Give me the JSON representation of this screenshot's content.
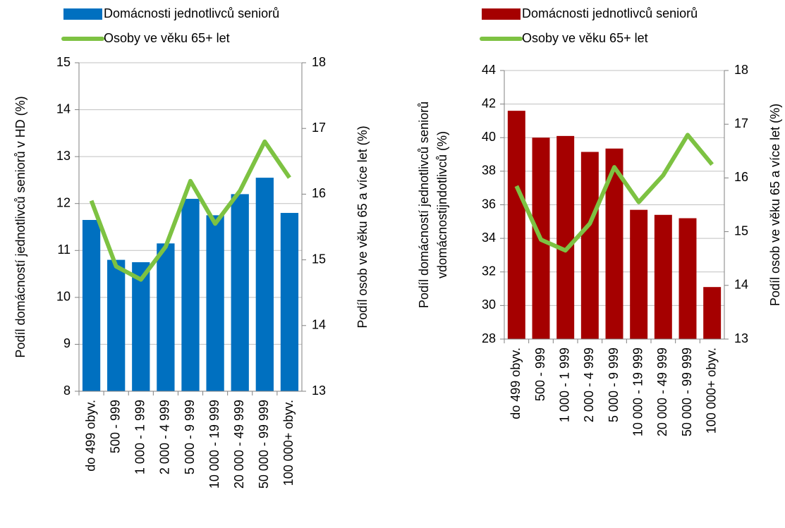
{
  "chart_data": [
    {
      "type": "bar_line",
      "ylabel": [
        "Podíl domácností jednotlivců seniorů v HD (%)"
      ],
      "y2label": "Podíl osob ve věku 65 a více let (%)",
      "categories": [
        "do 499 obyv.",
        "500 - 999",
        "1 000 - 1 999",
        "2 000 - 4 999",
        "5 000 - 9 999",
        "10 000 - 19 999",
        "20 000 - 49 999",
        "50 000 - 99 999",
        "100 000+ obyv."
      ],
      "series": [
        {
          "name": "Domácnosti jednotlivců seniorů",
          "color": "#0070c0",
          "kind": "bar",
          "values": [
            11.65,
            10.8,
            10.75,
            11.15,
            12.1,
            11.75,
            12.2,
            12.55,
            11.8
          ]
        },
        {
          "name": "Osoby ve věku 65+ let",
          "color": "#7dc242",
          "kind": "line",
          "axis": "y2",
          "values": [
            15.9,
            14.9,
            14.7,
            15.2,
            16.2,
            15.55,
            16.05,
            16.8,
            16.25
          ]
        }
      ],
      "ylim": [
        8,
        15
      ],
      "yticks": [
        8,
        9,
        10,
        11,
        12,
        13,
        14,
        15
      ],
      "y2lim": [
        13,
        18
      ],
      "y2ticks": [
        13,
        14,
        15,
        16,
        17,
        18
      ],
      "grid": true
    },
    {
      "type": "bar_line",
      "ylabel": [
        "Podíl domácností jednotlivců seniorů",
        "vdomácnostijndotlivců (%)"
      ],
      "y2label": "Podíl osob ve věku 65 a více let (%)",
      "categories": [
        "do 499 obyv.",
        "500 - 999",
        "1 000 - 1 999",
        "2 000 - 4 999",
        "5 000 - 9 999",
        "10 000 - 19 999",
        "20 000 - 49 999",
        "50 000 - 99 999",
        "100 000+ obyv."
      ],
      "series": [
        {
          "name": "Domácnosti jednotlivců seniorů",
          "color": "#a50000",
          "kind": "bar",
          "values": [
            41.6,
            40.0,
            40.1,
            39.15,
            39.35,
            35.7,
            35.4,
            35.2,
            31.1
          ]
        },
        {
          "name": "Osoby ve věku 65+ let",
          "color": "#7dc242",
          "kind": "line",
          "axis": "y2",
          "values": [
            15.85,
            14.85,
            14.65,
            15.15,
            16.2,
            15.55,
            16.05,
            16.8,
            16.25
          ]
        }
      ],
      "ylim": [
        28,
        44
      ],
      "yticks": [
        28,
        30,
        32,
        34,
        36,
        38,
        40,
        42,
        44
      ],
      "y2lim": [
        13,
        18
      ],
      "y2ticks": [
        13,
        14,
        15,
        16,
        17,
        18
      ],
      "grid": true
    }
  ]
}
